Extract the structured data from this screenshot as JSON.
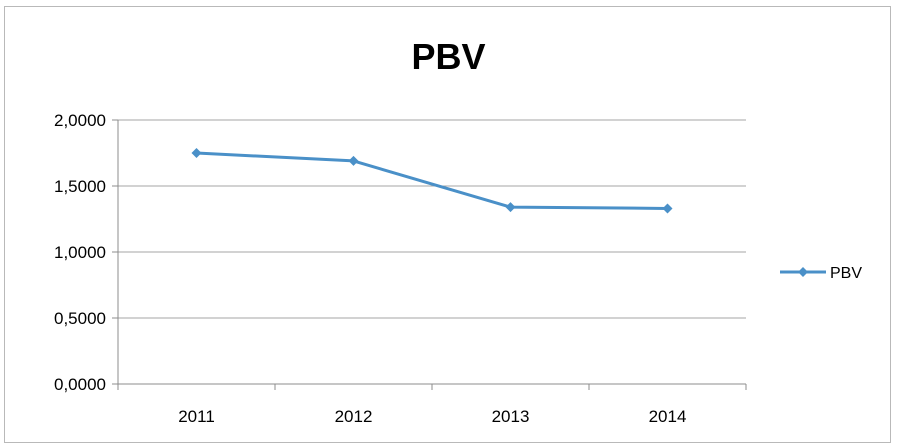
{
  "chart_data": {
    "type": "line",
    "title": "PBV",
    "xlabel": "",
    "ylabel": "",
    "categories": [
      "2011",
      "2012",
      "2013",
      "2014"
    ],
    "series": [
      {
        "name": "PBV",
        "values": [
          1.75,
          1.69,
          1.34,
          1.33
        ],
        "color": "#4a90c8"
      }
    ],
    "ylim": [
      0,
      2
    ],
    "yticks": [
      0,
      0.5,
      1,
      1.5,
      2
    ],
    "ytick_labels": [
      "0,0000",
      "0,5000",
      "1,0000",
      "1,5000",
      "2,0000"
    ],
    "grid": true,
    "legend_position": "right",
    "marker": "diamond"
  }
}
